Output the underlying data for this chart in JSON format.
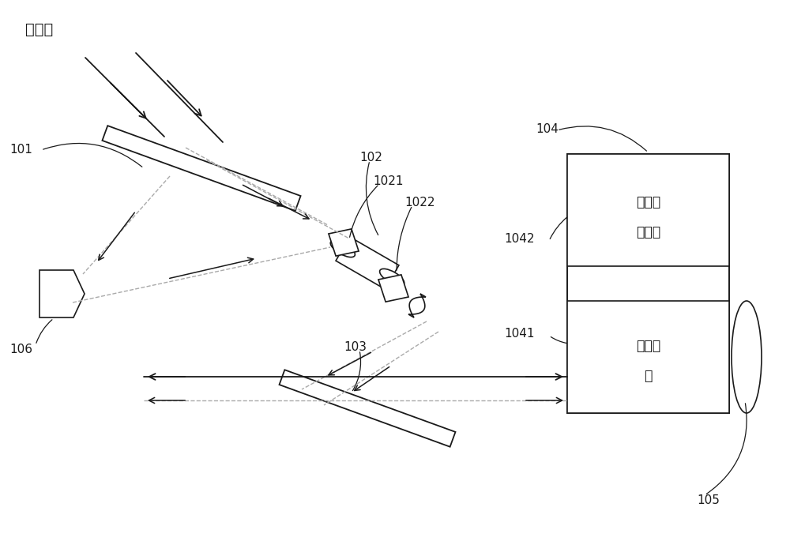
{
  "bg_color": "#ffffff",
  "line_color": "#1a1a1a",
  "dashed_color": "#aaaaaa",
  "labels": {
    "incident": "入射光",
    "101": "101",
    "102": "102",
    "1021": "1021",
    "1022": "1022",
    "103": "103",
    "104": "104",
    "1041": "1041",
    "1042": "1042",
    "105": "105",
    "106": "106",
    "box1_line1": "电光驱",
    "box1_line2": "动电源",
    "box2_line1": "电光晶",
    "box2_line2": "体"
  },
  "figsize": [
    10.0,
    6.85
  ],
  "dpi": 100
}
